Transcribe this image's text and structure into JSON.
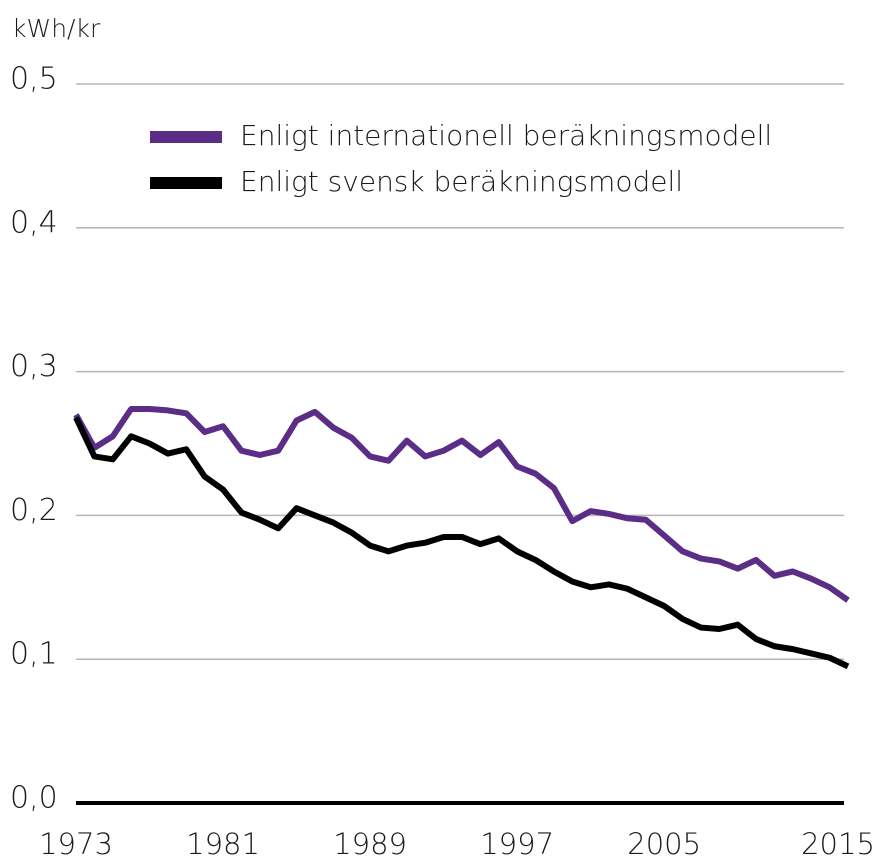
{
  "chart_data": {
    "type": "line",
    "y_label": "kWh/kr",
    "x": [
      1973,
      1974,
      1975,
      1976,
      1977,
      1978,
      1979,
      1980,
      1981,
      1982,
      1983,
      1984,
      1985,
      1986,
      1987,
      1988,
      1989,
      1990,
      1991,
      1992,
      1993,
      1994,
      1995,
      1996,
      1997,
      1998,
      1999,
      2000,
      2001,
      2002,
      2003,
      2004,
      2005,
      2006,
      2007,
      2008,
      2009,
      2010,
      2011,
      2012,
      2013,
      2014,
      2015
    ],
    "series": [
      {
        "name": "Enligt internationell beräkningsmodell",
        "color": "#5b2d86",
        "values": [
          0.27,
          0.247,
          0.255,
          0.274,
          0.274,
          0.273,
          0.271,
          0.258,
          0.262,
          0.245,
          0.242,
          0.245,
          0.266,
          0.272,
          0.261,
          0.254,
          0.241,
          0.238,
          0.252,
          0.241,
          0.245,
          0.252,
          0.242,
          0.251,
          0.234,
          0.229,
          0.219,
          0.196,
          0.203,
          0.201,
          0.198,
          0.197,
          0.186,
          0.175,
          0.17,
          0.168,
          0.163,
          0.169,
          0.158,
          0.161,
          0.156,
          0.15,
          0.141
        ]
      },
      {
        "name": "Enligt svensk beräkningsmodell",
        "color": "#000000",
        "values": [
          0.268,
          0.241,
          0.239,
          0.255,
          0.25,
          0.243,
          0.246,
          0.227,
          0.218,
          0.202,
          0.197,
          0.191,
          0.205,
          0.2,
          0.195,
          0.188,
          0.179,
          0.175,
          0.179,
          0.181,
          0.185,
          0.185,
          0.18,
          0.184,
          0.175,
          0.169,
          0.161,
          0.154,
          0.15,
          0.152,
          0.149,
          0.143,
          0.137,
          0.128,
          0.122,
          0.121,
          0.124,
          0.114,
          0.109,
          0.107,
          0.104,
          0.101,
          0.095
        ]
      }
    ],
    "xlim": [
      1973,
      2015
    ],
    "xticks": [
      1973,
      1981,
      1989,
      1997,
      2005,
      2015
    ],
    "ylim": [
      0,
      0.5
    ],
    "yticks": [
      {
        "value": 0,
        "label": "0,0"
      },
      {
        "value": 0.1,
        "label": "0,1"
      },
      {
        "value": 0.2,
        "label": "0,2"
      },
      {
        "value": 0.3,
        "label": "0,3"
      },
      {
        "value": 0.4,
        "label": "0,4"
      },
      {
        "value": 0.5,
        "label": "0,5"
      }
    ],
    "grid": true
  }
}
